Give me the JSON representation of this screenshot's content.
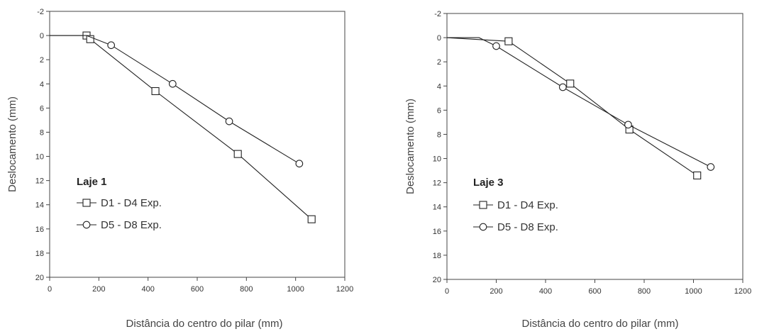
{
  "chart_data": [
    {
      "type": "line",
      "annotation": "Laje 1",
      "xlabel": "Distância do centro do pilar (mm)",
      "ylabel": "Deslocamento (mm)",
      "xlim": [
        0,
        1200
      ],
      "ylim": [
        -2,
        20
      ],
      "y_inverted": true,
      "xticks": [
        "0",
        "200",
        "400",
        "600",
        "800",
        "1000",
        "1200"
      ],
      "yticks": [
        "-2",
        "0",
        "2",
        "4",
        "6",
        "8",
        "10",
        "12",
        "14",
        "16",
        "18",
        "20"
      ],
      "grid": false,
      "legend_position": "lower-left",
      "series": [
        {
          "name": "D1 - D4 Exp.",
          "marker": "square",
          "x": [
            0,
            150,
            165,
            430,
            765,
            1065
          ],
          "y": [
            0,
            0,
            0.3,
            4.6,
            9.8,
            15.2
          ],
          "marked": [
            false,
            true,
            true,
            true,
            true,
            true
          ]
        },
        {
          "name": "D5 - D8 Exp.",
          "marker": "circle",
          "x": [
            0,
            150,
            250,
            500,
            730,
            1015
          ],
          "y": [
            0,
            0,
            0.8,
            4.0,
            7.1,
            10.6
          ],
          "marked": [
            false,
            false,
            true,
            true,
            true,
            true
          ]
        }
      ]
    },
    {
      "type": "line",
      "annotation": "Laje 3",
      "xlabel": "Distância do centro do pilar (mm)",
      "ylabel": "Deslocamento (mm)",
      "xlim": [
        0,
        1200
      ],
      "ylim": [
        -2,
        20
      ],
      "y_inverted": true,
      "xticks": [
        "0",
        "200",
        "400",
        "600",
        "800",
        "1000",
        "1200"
      ],
      "yticks": [
        "-2",
        "0",
        "2",
        "4",
        "6",
        "8",
        "10",
        "12",
        "14",
        "16",
        "18",
        "20"
      ],
      "grid": false,
      "legend_position": "lower-left",
      "series": [
        {
          "name": "D1 - D4 Exp.",
          "marker": "square",
          "x": [
            0,
            250,
            500,
            740,
            1015
          ],
          "y": [
            0,
            0.3,
            3.8,
            7.6,
            11.4
          ],
          "marked": [
            false,
            true,
            true,
            true,
            true
          ]
        },
        {
          "name": "D5 - D8 Exp.",
          "marker": "circle",
          "x": [
            0,
            130,
            200,
            470,
            735,
            1070
          ],
          "y": [
            0,
            0,
            0.7,
            4.1,
            7.2,
            10.7
          ],
          "marked": [
            false,
            false,
            true,
            true,
            true,
            true
          ]
        }
      ]
    }
  ]
}
